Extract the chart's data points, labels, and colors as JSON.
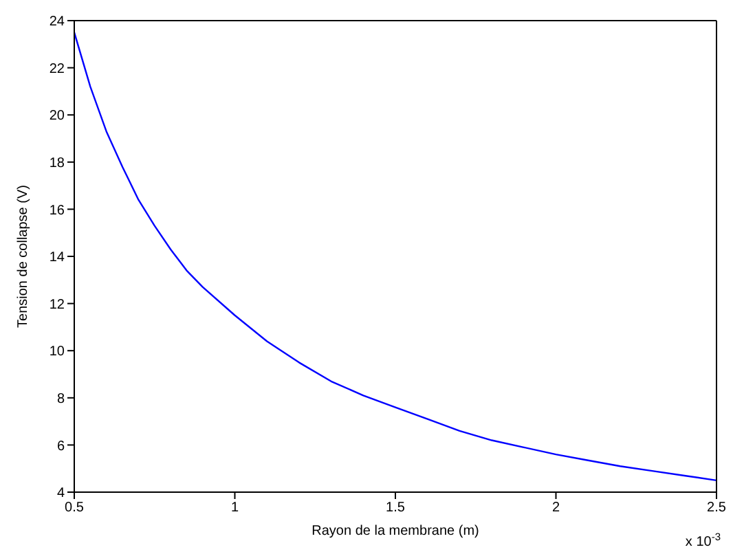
{
  "chart_data": {
    "type": "line",
    "xlabel": "Rayon de la membrane (m)",
    "ylabel": "Tension de collapse (V)",
    "x": [
      0.5,
      0.55,
      0.6,
      0.65,
      0.7,
      0.75,
      0.8,
      0.85,
      0.9,
      1.0,
      1.1,
      1.2,
      1.3,
      1.4,
      1.5,
      1.6,
      1.7,
      1.8,
      1.9,
      2.0,
      2.1,
      2.2,
      2.3,
      2.4,
      2.5
    ],
    "series": [
      {
        "color": "#0000ff",
        "values": [
          23.5,
          21.2,
          19.3,
          17.8,
          16.4,
          15.3,
          14.3,
          13.4,
          12.7,
          11.5,
          10.4,
          9.5,
          8.7,
          8.1,
          7.6,
          7.1,
          6.6,
          6.2,
          5.9,
          5.6,
          5.35,
          5.1,
          4.9,
          4.7,
          4.5
        ]
      }
    ],
    "xlim": [
      0.5,
      2.5
    ],
    "xticks": [
      0.5,
      1,
      1.5,
      2,
      2.5
    ],
    "ylim": [
      4,
      24
    ],
    "yticks": [
      4,
      6,
      8,
      10,
      12,
      14,
      16,
      18,
      20,
      22,
      24
    ],
    "annotations": [
      "x 10$^{-3}$"
    ],
    "grid": false,
    "legend": false,
    "marker": "none",
    "line_style": "solid"
  }
}
